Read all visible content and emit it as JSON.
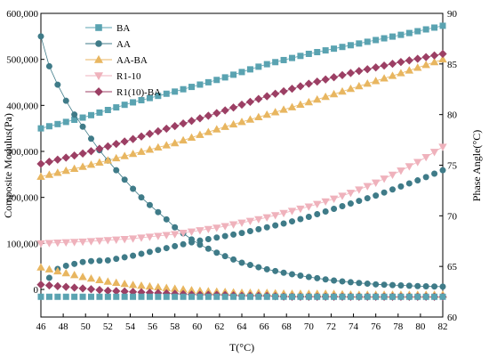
{
  "chart_data": {
    "type": "line",
    "title": "",
    "xlabel": "T(°C)",
    "ylabel": "Composite Modulus(Pa)",
    "y2label": "Phase Angle(°C)",
    "xlim": [
      46,
      82
    ],
    "ylim": [
      -60000,
      600000
    ],
    "y2lim": [
      60,
      90
    ],
    "xticks": [
      "46",
      "48",
      "50",
      "52",
      "54",
      "56",
      "58",
      "60",
      "62",
      "64",
      "66",
      "68",
      "70",
      "72",
      "74",
      "76",
      "78",
      "80",
      "82"
    ],
    "yticks": [
      "0",
      "100,000",
      "200,000",
      "300,000",
      "400,000",
      "500,000",
      "600,000"
    ],
    "y2ticks": [
      "60",
      "65",
      "70",
      "75",
      "80",
      "85",
      "90"
    ],
    "legend_position": "top-left",
    "series": [
      {
        "name": "BA",
        "axis": "left",
        "color": "#5aa3b1",
        "marker": "square",
        "line": true,
        "x": [
          46,
          50,
          54,
          58,
          62,
          66,
          70,
          74,
          78,
          82
        ],
        "values": [
          350000,
          375000,
          405000,
          430000,
          457000,
          488000,
          512000,
          532000,
          552000,
          573000
        ]
      },
      {
        "name": "AA",
        "axis": "left",
        "color": "#3f7b88",
        "marker": "circle",
        "line": true,
        "x": [
          46,
          46.5,
          47,
          48,
          49,
          50,
          51,
          52,
          53,
          54,
          55,
          56,
          57,
          58,
          60,
          62,
          64,
          66,
          68,
          70,
          72,
          74,
          76,
          78,
          80,
          82
        ],
        "values": [
          550000,
          500000,
          470000,
          420000,
          380000,
          345000,
          310000,
          280000,
          252000,
          225000,
          200000,
          178000,
          158000,
          135000,
          100000,
          77000,
          58000,
          45000,
          35000,
          27000,
          20000,
          15000,
          11000,
          9000,
          7000,
          6000
        ]
      },
      {
        "name": "AA-BA",
        "axis": "left",
        "color": "#e8b660",
        "marker": "triangle-up",
        "line": true,
        "x": [
          46,
          50,
          54,
          58,
          62,
          66,
          70,
          74,
          78,
          82
        ],
        "values": [
          245000,
          268000,
          293000,
          318000,
          350000,
          378000,
          407000,
          438000,
          468000,
          500000
        ]
      },
      {
        "name": "R1-10",
        "axis": "left",
        "color": "#efb2bc",
        "marker": "triangle-down",
        "line": true,
        "x": [
          46,
          50,
          54,
          58,
          62,
          66,
          70,
          72,
          74,
          76,
          78,
          80,
          82
        ],
        "values": [
          100000,
          104000,
          110000,
          120000,
          135000,
          155000,
          180000,
          195000,
          212000,
          232000,
          255000,
          280000,
          310000
        ]
      },
      {
        "name": "R1(10)-BA",
        "axis": "left",
        "color": "#9c3f64",
        "marker": "diamond",
        "line": true,
        "x": [
          46,
          50,
          54,
          58,
          62,
          66,
          70,
          74,
          78,
          82
        ],
        "values": [
          273000,
          297000,
          325000,
          355000,
          385000,
          418000,
          447000,
          472000,
          493000,
          512000
        ]
      },
      {
        "name": "",
        "axis": "right",
        "color": "#3f7b88",
        "marker": "circle",
        "line": false,
        "x": [
          46,
          47,
          48,
          50,
          52,
          54,
          56,
          58,
          60,
          62,
          64,
          66,
          68,
          70,
          72,
          74,
          76,
          78,
          80,
          82
        ],
        "values": [
          62.0,
          64.5,
          65.0,
          65.5,
          65.6,
          66.0,
          66.5,
          67.0,
          67.5,
          67.9,
          68.3,
          68.8,
          69.3,
          69.9,
          70.6,
          71.3,
          72.0,
          72.8,
          73.6,
          74.5
        ]
      },
      {
        "name": "",
        "axis": "right",
        "color": "#e8b660",
        "marker": "triangle-up",
        "line": false,
        "x": [
          46,
          48,
          50,
          52,
          54,
          56,
          58,
          60,
          62,
          64,
          66,
          68,
          70,
          72,
          74,
          76,
          78,
          80,
          82
        ],
        "values": [
          64.9,
          64.4,
          63.9,
          63.5,
          63.2,
          63.0,
          62.8,
          62.6,
          62.5,
          62.4,
          62.4,
          62.3,
          62.3,
          62.3,
          62.2,
          62.2,
          62.2,
          62.2,
          62.2
        ]
      },
      {
        "name": "",
        "axis": "right",
        "color": "#9c3f64",
        "marker": "diamond",
        "line": false,
        "x": [
          46,
          48,
          50,
          52,
          54,
          56,
          58,
          60,
          62,
          64,
          66,
          68,
          70,
          72,
          74,
          76,
          78,
          80,
          82
        ],
        "values": [
          63.2,
          63.0,
          62.8,
          62.6,
          62.5,
          62.4,
          62.3,
          62.2,
          62.2,
          62.1,
          62.1,
          62.0,
          62.0,
          62.0,
          62.0,
          62.0,
          62.0,
          62.0,
          62.0
        ]
      },
      {
        "name": "",
        "axis": "right",
        "color": "#5aa3b1",
        "marker": "square",
        "line": false,
        "x": [
          46,
          50,
          54,
          58,
          62,
          66,
          70,
          74,
          78,
          82
        ],
        "values": [
          62.0,
          62.0,
          62.0,
          62.0,
          62.0,
          62.0,
          62.0,
          62.0,
          62.0,
          62.0
        ]
      }
    ]
  }
}
